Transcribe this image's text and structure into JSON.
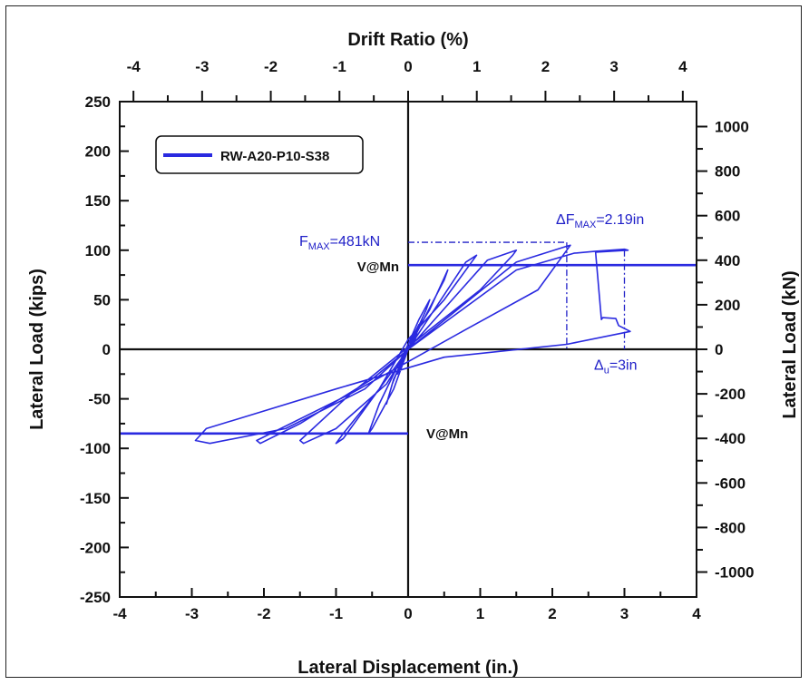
{
  "chart_data": {
    "type": "line",
    "title": "",
    "xlabel": "Lateral Displacement (in.)",
    "ylabel": "Lateral Load (kips)",
    "x2label": "Drift Ratio (%)",
    "y2label": "Lateral Load (kN)",
    "xlim": [
      -4,
      4
    ],
    "ylim": [
      -250,
      250
    ],
    "x2lim": [
      -4.2,
      4.2
    ],
    "y2lim": [
      -1112,
      1112
    ],
    "x_ticks": [
      "-4",
      "-3",
      "-2",
      "-1",
      "0",
      "1",
      "2",
      "3",
      "4"
    ],
    "y_ticks": [
      "250",
      "200",
      "150",
      "100",
      "50",
      "0",
      "-50",
      "-100",
      "-150",
      "-200",
      "-250"
    ],
    "x2_ticks": [
      "-4",
      "-3",
      "-2",
      "-1",
      "0",
      "1",
      "2",
      "3",
      "4"
    ],
    "y2_ticks": [
      "1000",
      "800",
      "600",
      "400",
      "200",
      "0",
      "-200",
      "-400",
      "-600",
      "-800",
      "-1000"
    ],
    "grid": false,
    "legend_position": "top-left",
    "colors": {
      "series": "#2a2ae0",
      "annotation": "#2020c8",
      "axis": "#111111"
    },
    "series": [
      {
        "name": "RW-A20-P10-S38",
        "x": [
          0,
          0.08,
          0.15,
          0.1,
          0,
          -0.08,
          -0.15,
          -0.1,
          0,
          0.25,
          0.3,
          0.15,
          0,
          -0.22,
          -0.3,
          -0.2,
          0,
          0.5,
          0.55,
          0.3,
          0,
          -0.4,
          -0.55,
          -0.5,
          -0.2,
          0,
          0.8,
          0.95,
          0.85,
          0.5,
          0,
          -0.4,
          -0.9,
          -1.0,
          -0.9,
          -0.4,
          0,
          1.1,
          1.5,
          1.45,
          1.0,
          0.3,
          -0.8,
          -1.5,
          -1.45,
          -1.0,
          -0.3,
          0,
          1.5,
          2.2,
          2.25,
          1.8,
          0.8,
          -0.8,
          -2.1,
          -2.05,
          -1.5,
          -0.5,
          0,
          1.5,
          2.3,
          2.6,
          2.8,
          3.0,
          3.05,
          2.6,
          2.68,
          2.7,
          2.88,
          2.92,
          3.08,
          2.2,
          0.5,
          -1.0,
          -2.8,
          -2.95,
          -2.75,
          -1.7,
          -0.6,
          0
        ],
        "y": [
          0,
          15,
          25,
          10,
          0,
          -15,
          -25,
          -10,
          0,
          40,
          50,
          30,
          5,
          -35,
          -55,
          -30,
          0,
          70,
          80,
          40,
          5,
          -55,
          -85,
          -80,
          -40,
          0,
          88,
          95,
          85,
          50,
          10,
          -40,
          -85,
          -95,
          -90,
          -40,
          0,
          90,
          100,
          95,
          60,
          20,
          -45,
          -92,
          -95,
          -80,
          -35,
          0,
          88,
          104,
          105,
          60,
          20,
          -45,
          -92,
          -95,
          -75,
          -30,
          0,
          80,
          97,
          99,
          100,
          101,
          100,
          98,
          30,
          32,
          31,
          24,
          18,
          5,
          -8,
          -40,
          -80,
          -92,
          -95,
          -80,
          -40,
          0
        ]
      }
    ],
    "annotations": {
      "fmax_label": "F",
      "fmax_sub": "MAX",
      "fmax_value": "=481kN",
      "dfmax_label": "ΔF",
      "dfmax_sub": "MAX",
      "dfmax_value": "=2.19in",
      "du_label": "Δ",
      "du_sub": "u",
      "du_value": "=3in",
      "vmn_pos": "V@Mn",
      "vmn_neg": "V@Mn",
      "fmax_load": 108,
      "fmax_disp": 2.2,
      "ultimate_disp": 3.0,
      "vmn_value": 85
    }
  }
}
